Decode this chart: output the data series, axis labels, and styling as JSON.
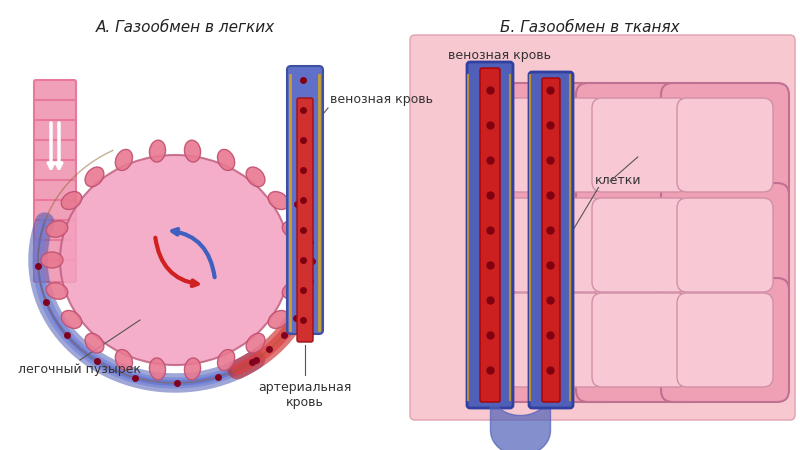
{
  "title_A": "А. Газообмен в легких",
  "title_B": "Б. Газообмен в тканях",
  "label_alveola": "легочный пузырек",
  "label_venous": "венозная кровь",
  "label_arterial": "артериальная\nкровь",
  "label_cells": "клетки",
  "bg_color": "#ffffff",
  "fig_width": 8.0,
  "fig_height": 4.5,
  "dpi": 100
}
